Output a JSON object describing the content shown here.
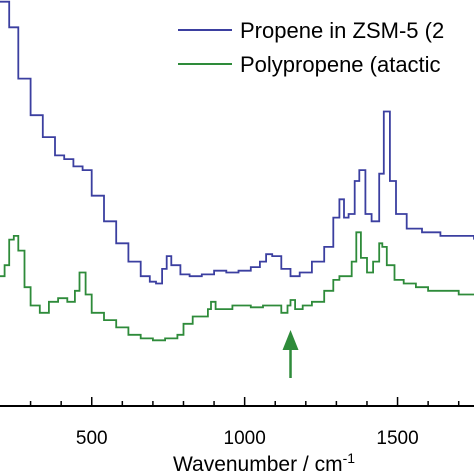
{
  "chart_data": {
    "type": "line",
    "title": "",
    "xlabel": "Wavenumber / cm",
    "xlabel_superscript": "-1",
    "ylabel": "",
    "xlim": [
      200,
      1750
    ],
    "ylim": [
      0,
      1
    ],
    "x_ticks": [
      500,
      1000,
      1500
    ],
    "tick_labels": [
      "500",
      "1000",
      "1500"
    ],
    "grid": false,
    "legend_position": "top-right",
    "annotations": [
      {
        "type": "arrow",
        "x": 1150,
        "direction": "up",
        "color": "#2e8b3a"
      }
    ],
    "series": [
      {
        "name": "Propene in ZSM-5 (2",
        "color": "#3b3fa0",
        "x": [
          200,
          230,
          260,
          300,
          340,
          380,
          410,
          440,
          470,
          500,
          540,
          580,
          620,
          660,
          690,
          710,
          730,
          745,
          760,
          790,
          820,
          860,
          900,
          940,
          980,
          1020,
          1050,
          1070,
          1090,
          1120,
          1150,
          1180,
          1220,
          1260,
          1290,
          1310,
          1325,
          1340,
          1360,
          1375,
          1395,
          1415,
          1440,
          1455,
          1475,
          1495,
          1530,
          1580,
          1640,
          1700,
          1750
        ],
        "y": [
          1.05,
          0.98,
          0.84,
          0.74,
          0.68,
          0.63,
          0.62,
          0.6,
          0.59,
          0.52,
          0.45,
          0.39,
          0.34,
          0.3,
          0.285,
          0.28,
          0.32,
          0.355,
          0.33,
          0.305,
          0.3,
          0.305,
          0.315,
          0.31,
          0.315,
          0.325,
          0.34,
          0.36,
          0.355,
          0.32,
          0.3,
          0.31,
          0.34,
          0.38,
          0.46,
          0.51,
          0.46,
          0.47,
          0.56,
          0.59,
          0.47,
          0.45,
          0.58,
          0.75,
          0.56,
          0.47,
          0.43,
          0.42,
          0.41,
          0.41,
          0.4
        ]
      },
      {
        "name": "Polypropene (atactic",
        "color": "#2e8b3a",
        "x": [
          200,
          215,
          230,
          245,
          260,
          280,
          300,
          330,
          360,
          390,
          420,
          445,
          460,
          480,
          500,
          540,
          580,
          620,
          660,
          700,
          740,
          780,
          800,
          830,
          860,
          880,
          890,
          905,
          930,
          960,
          990,
          1020,
          1060,
          1090,
          1120,
          1140,
          1150,
          1165,
          1190,
          1220,
          1260,
          1290,
          1310,
          1330,
          1350,
          1365,
          1380,
          1400,
          1420,
          1440,
          1450,
          1465,
          1490,
          1520,
          1560,
          1600,
          1650,
          1700,
          1750
        ],
        "y": [
          0.3,
          0.33,
          0.4,
          0.41,
          0.37,
          0.27,
          0.22,
          0.2,
          0.23,
          0.24,
          0.23,
          0.26,
          0.31,
          0.25,
          0.2,
          0.18,
          0.16,
          0.14,
          0.13,
          0.125,
          0.13,
          0.14,
          0.17,
          0.19,
          0.19,
          0.21,
          0.23,
          0.21,
          0.21,
          0.22,
          0.22,
          0.215,
          0.22,
          0.22,
          0.2,
          0.22,
          0.235,
          0.21,
          0.22,
          0.23,
          0.26,
          0.29,
          0.3,
          0.3,
          0.34,
          0.42,
          0.35,
          0.31,
          0.34,
          0.39,
          0.38,
          0.33,
          0.29,
          0.28,
          0.27,
          0.26,
          0.26,
          0.25,
          0.25
        ]
      }
    ]
  }
}
